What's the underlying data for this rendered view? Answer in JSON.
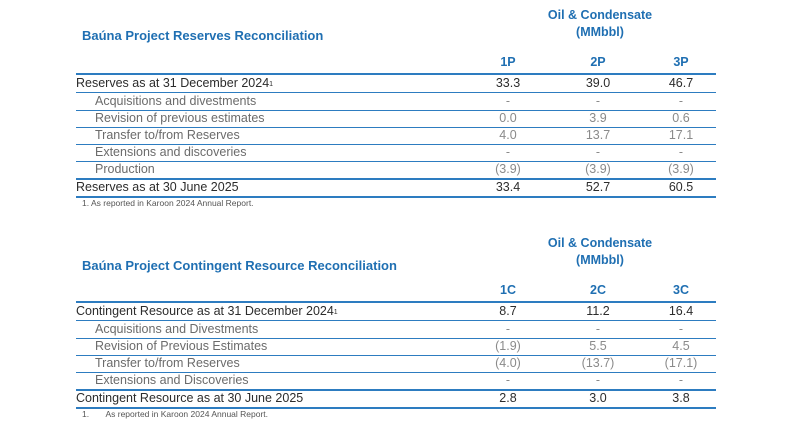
{
  "reserves": {
    "title": "Baúna Project Reserves Reconciliation",
    "unit_line1": "Oil & Condensate",
    "unit_line2": "(MMbbl)",
    "columns": [
      "1P",
      "2P",
      "3P"
    ],
    "opening": {
      "label": "Reserves as at 31 December 2024",
      "sup": "1",
      "values": [
        "33.3",
        "39.0",
        "46.7"
      ]
    },
    "rows": [
      {
        "label": "Acquisitions and divestments",
        "values": [
          "-",
          "-",
          "-"
        ]
      },
      {
        "label": "Revision of previous estimates",
        "values": [
          "0.0",
          "3.9",
          "0.6"
        ]
      },
      {
        "label": "Transfer to/from Reserves",
        "values": [
          "4.0",
          "13.7",
          "17.1"
        ]
      },
      {
        "label": "Extensions and discoveries",
        "values": [
          "-",
          "-",
          "-"
        ]
      },
      {
        "label": "Production",
        "values": [
          "(3.9)",
          "(3.9)",
          "(3.9)"
        ]
      }
    ],
    "closing": {
      "label": "Reserves as at 30 June 2025",
      "values": [
        "33.4",
        "52.7",
        "60.5"
      ]
    },
    "footnote": "1. As reported in Karoon 2024 Annual Report."
  },
  "contingent": {
    "title": "Baúna Project Contingent Resource Reconciliation",
    "unit_line1": "Oil & Condensate",
    "unit_line2": "(MMbbl)",
    "columns": [
      "1C",
      "2C",
      "3C"
    ],
    "opening": {
      "label": "Contingent Resource as at 31 December 2024",
      "sup": "1",
      "values": [
        "8.7",
        "11.2",
        "16.4"
      ]
    },
    "rows": [
      {
        "label": "Acquisitions and Divestments",
        "values": [
          "-",
          "-",
          "-"
        ]
      },
      {
        "label": "Revision of Previous Estimates",
        "values": [
          "(1.9)",
          "5.5",
          "4.5"
        ]
      },
      {
        "label": "Transfer to/from Reserves",
        "values": [
          "(4.0)",
          "(13.7)",
          "(17.1)"
        ]
      },
      {
        "label": "Extensions and Discoveries",
        "values": [
          "-",
          "-",
          "-"
        ]
      }
    ],
    "closing": {
      "label": "Contingent Resource as at 30 June 2025",
      "values": [
        "2.8",
        "3.0",
        "3.8"
      ]
    },
    "footnote_num": "1.",
    "footnote": "As reported in Karoon 2024 Annual Report."
  }
}
